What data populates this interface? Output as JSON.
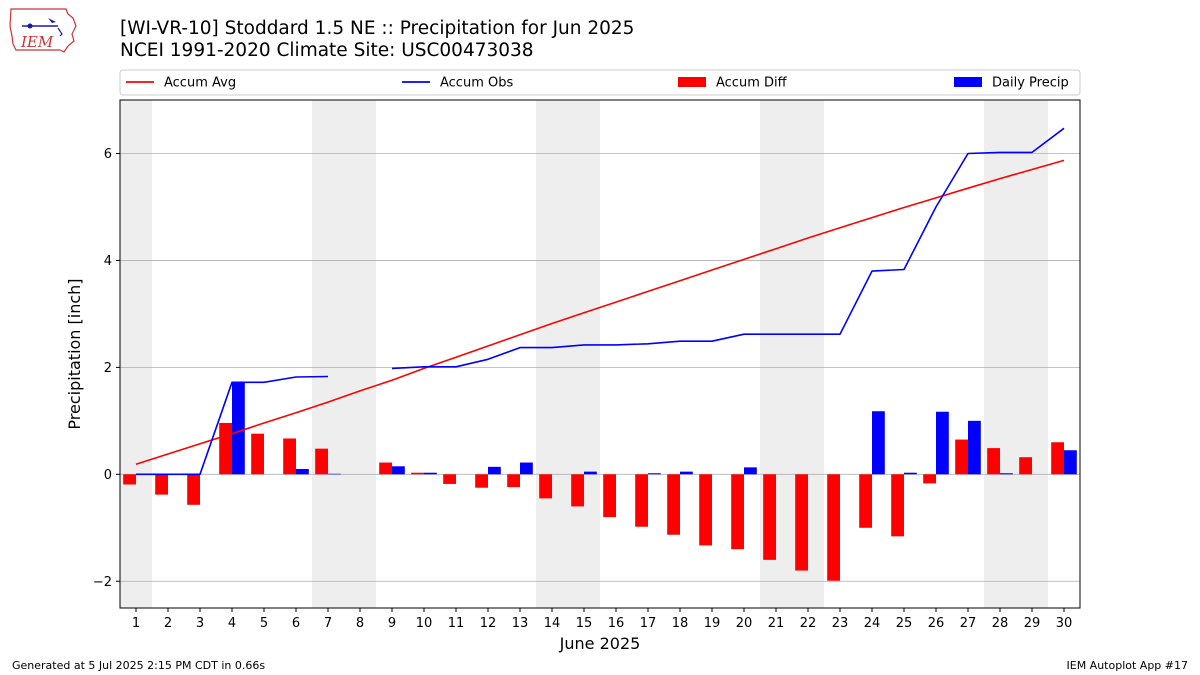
{
  "header": {
    "title_line1": "[WI-VR-10] Stoddard 1.5 NE :: Precipitation for Jun 2025",
    "title_line2": "NCEI 1991-2020 Climate Site: USC00473038",
    "logo_text": "IEM"
  },
  "footer": {
    "generated": "Generated at 5 Jul 2025 2:15 PM CDT in 0.66s",
    "app": "IEM Autoplot App #17"
  },
  "chart_data": {
    "type": "bar",
    "xlabel": "June 2025",
    "ylabel": "Precipitation [inch]",
    "xlim": [
      0.5,
      30.5
    ],
    "ylim": [
      -2.5,
      7.0
    ],
    "yticks": [
      -2,
      0,
      2,
      4,
      6
    ],
    "grid": "horizontal",
    "legend_position": "top, above plot",
    "weekend_shading": [
      1,
      7,
      8,
      14,
      15,
      21,
      22,
      28,
      29
    ],
    "days": [
      1,
      2,
      3,
      4,
      5,
      6,
      7,
      8,
      9,
      10,
      11,
      12,
      13,
      14,
      15,
      16,
      17,
      18,
      19,
      20,
      21,
      22,
      23,
      24,
      25,
      26,
      27,
      28,
      29,
      30
    ],
    "series": [
      {
        "name": "Accum Avg",
        "kind": "line",
        "color": "#ff0000",
        "values": [
          0.19,
          0.38,
          0.57,
          0.76,
          0.96,
          1.15,
          1.35,
          1.56,
          1.76,
          1.98,
          2.19,
          2.4,
          2.61,
          2.82,
          3.02,
          3.22,
          3.42,
          3.62,
          3.82,
          4.02,
          4.22,
          4.42,
          4.61,
          4.8,
          4.99,
          5.17,
          5.35,
          5.53,
          5.7,
          5.87
        ]
      },
      {
        "name": "Accum Obs",
        "kind": "line",
        "color": "#0000ff",
        "values": [
          0.0,
          0.0,
          0.0,
          1.72,
          1.72,
          1.82,
          1.83,
          null,
          1.98,
          2.01,
          2.01,
          2.15,
          2.37,
          2.37,
          2.42,
          2.42,
          2.44,
          2.49,
          2.49,
          2.62,
          2.62,
          2.62,
          2.62,
          3.8,
          3.83,
          5.0,
          6.0,
          6.02,
          6.02,
          6.47
        ]
      },
      {
        "name": "Accum Diff",
        "kind": "bar",
        "color": "#ff0000",
        "values": [
          -0.19,
          -0.38,
          -0.57,
          0.96,
          0.76,
          0.67,
          0.48,
          null,
          0.22,
          0.03,
          -0.18,
          -0.25,
          -0.24,
          -0.45,
          -0.6,
          -0.8,
          -0.98,
          -1.13,
          -1.33,
          -1.4,
          -1.6,
          -1.8,
          -1.99,
          -1.0,
          -1.16,
          -0.17,
          0.65,
          0.49,
          0.32,
          0.6
        ]
      },
      {
        "name": "Daily Precip",
        "kind": "bar",
        "color": "#0000ff",
        "values": [
          0.0,
          0.0,
          0.0,
          1.72,
          0.0,
          0.1,
          0.01,
          null,
          0.15,
          0.03,
          0.0,
          0.14,
          0.22,
          0.0,
          0.05,
          0.0,
          0.02,
          0.05,
          0.0,
          0.13,
          0.0,
          0.0,
          0.0,
          1.18,
          0.03,
          1.17,
          1.0,
          0.02,
          0.0,
          0.45
        ]
      }
    ]
  }
}
